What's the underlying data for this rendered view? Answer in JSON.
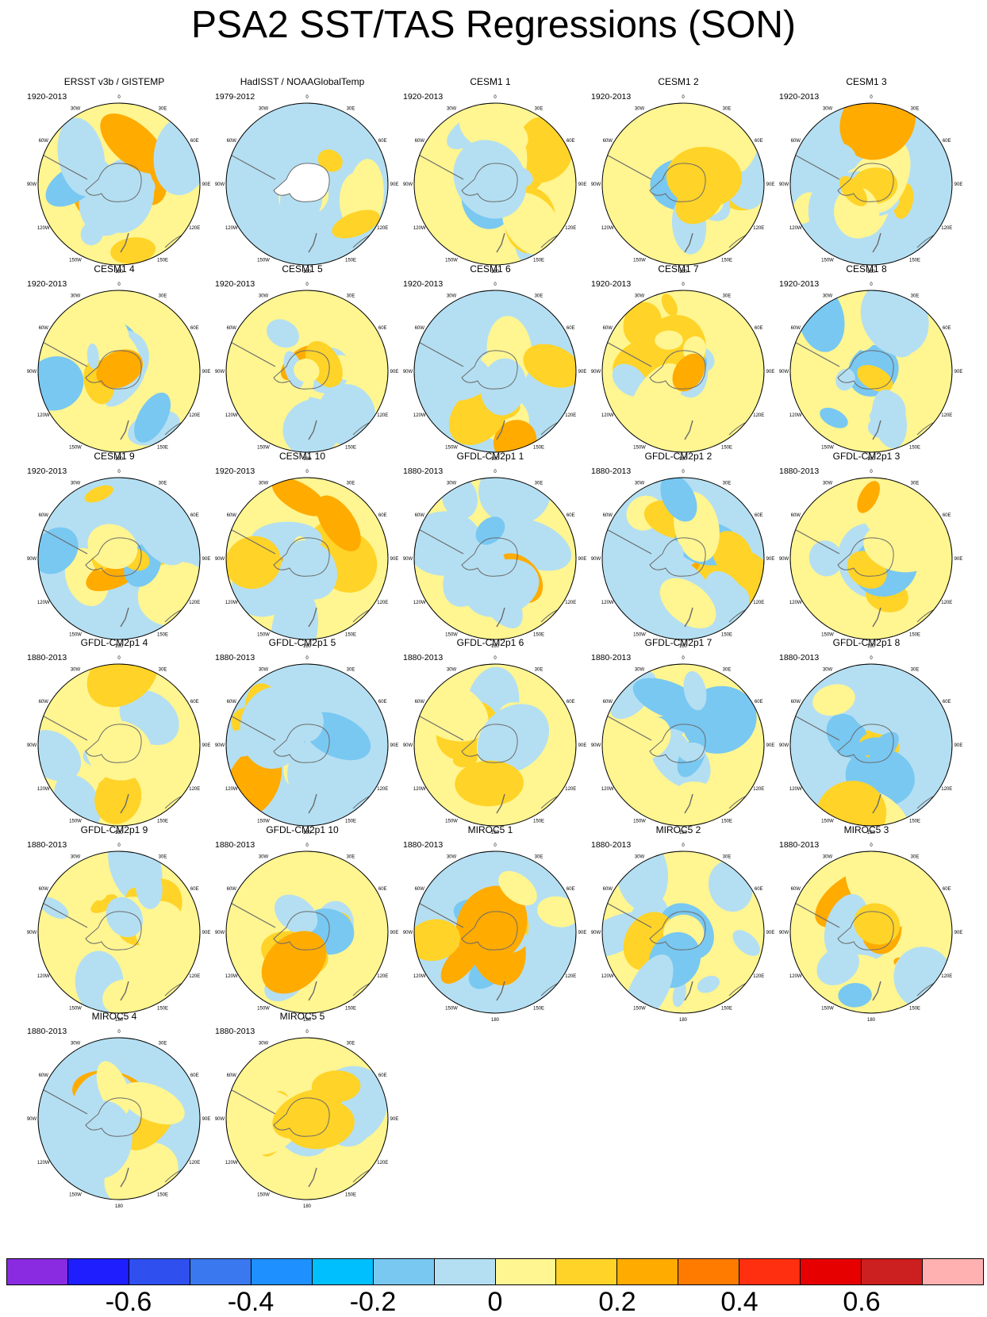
{
  "figure": {
    "title": "PSA2 SST/TAS Regressions (SON)"
  },
  "panels": [
    {
      "title": "ERSST v3b / GISTEMP",
      "period": "1920-2013"
    },
    {
      "title": "HadISST / NOAAGlobalTemp",
      "period": "1979-2012"
    },
    {
      "title": "CESM1 1",
      "period": "1920-2013"
    },
    {
      "title": "CESM1 2",
      "period": "1920-2013"
    },
    {
      "title": "CESM1 3",
      "period": "1920-2013"
    },
    {
      "title": "CESM1 4",
      "period": "1920-2013"
    },
    {
      "title": "CESM1 5",
      "period": "1920-2013"
    },
    {
      "title": "CESM1 6",
      "period": "1920-2013"
    },
    {
      "title": "CESM1 7",
      "period": "1920-2013"
    },
    {
      "title": "CESM1 8",
      "period": "1920-2013"
    },
    {
      "title": "CESM1 9",
      "period": "1920-2013"
    },
    {
      "title": "CESM1 10",
      "period": "1920-2013"
    },
    {
      "title": "GFDL-CM2p1 1",
      "period": "1880-2013"
    },
    {
      "title": "GFDL-CM2p1 2",
      "period": "1880-2013"
    },
    {
      "title": "GFDL-CM2p1 3",
      "period": "1880-2013"
    },
    {
      "title": "GFDL-CM2p1 4",
      "period": "1880-2013"
    },
    {
      "title": "GFDL-CM2p1 5",
      "period": "1880-2013"
    },
    {
      "title": "GFDL-CM2p1 6",
      "period": "1880-2013"
    },
    {
      "title": "GFDL-CM2p1 7",
      "period": "1880-2013"
    },
    {
      "title": "GFDL-CM2p1 8",
      "period": "1880-2013"
    },
    {
      "title": "GFDL-CM2p1 9",
      "period": "1880-2013"
    },
    {
      "title": "GFDL-CM2p1 10",
      "period": "1880-2013"
    },
    {
      "title": "MIROC5 1",
      "period": "1880-2013"
    },
    {
      "title": "MIROC5 2",
      "period": "1880-2013"
    },
    {
      "title": "MIROC5 3",
      "period": "1880-2013"
    },
    {
      "title": "MIROC5 4",
      "period": "1880-2013"
    },
    {
      "title": "MIROC5 5",
      "period": "1880-2013"
    }
  ],
  "longitude_labels": [
    "0",
    "30E",
    "60E",
    "90E",
    "120E",
    "150E",
    "180",
    "150W",
    "120W",
    "90W",
    "60W",
    "30W"
  ],
  "colorbar": {
    "colors": [
      "#8a2be2",
      "#1e1eff",
      "#2f4fee",
      "#3a78ef",
      "#1e90ff",
      "#00bfff",
      "#78c8f2",
      "#b4dff2",
      "#fff591",
      "#ffd327",
      "#ffab00",
      "#ff7b00",
      "#ff2f10",
      "#e60000",
      "#cc1f1f",
      "#ffb0b0"
    ],
    "tick_labels": [
      "-0.6",
      "-0.4",
      "-0.2",
      "0",
      "0.2",
      "0.4",
      "0.6"
    ]
  },
  "colors": {
    "land": "#ffffff",
    "coast": "#6b6b6b",
    "no_data": "#ffffff"
  }
}
